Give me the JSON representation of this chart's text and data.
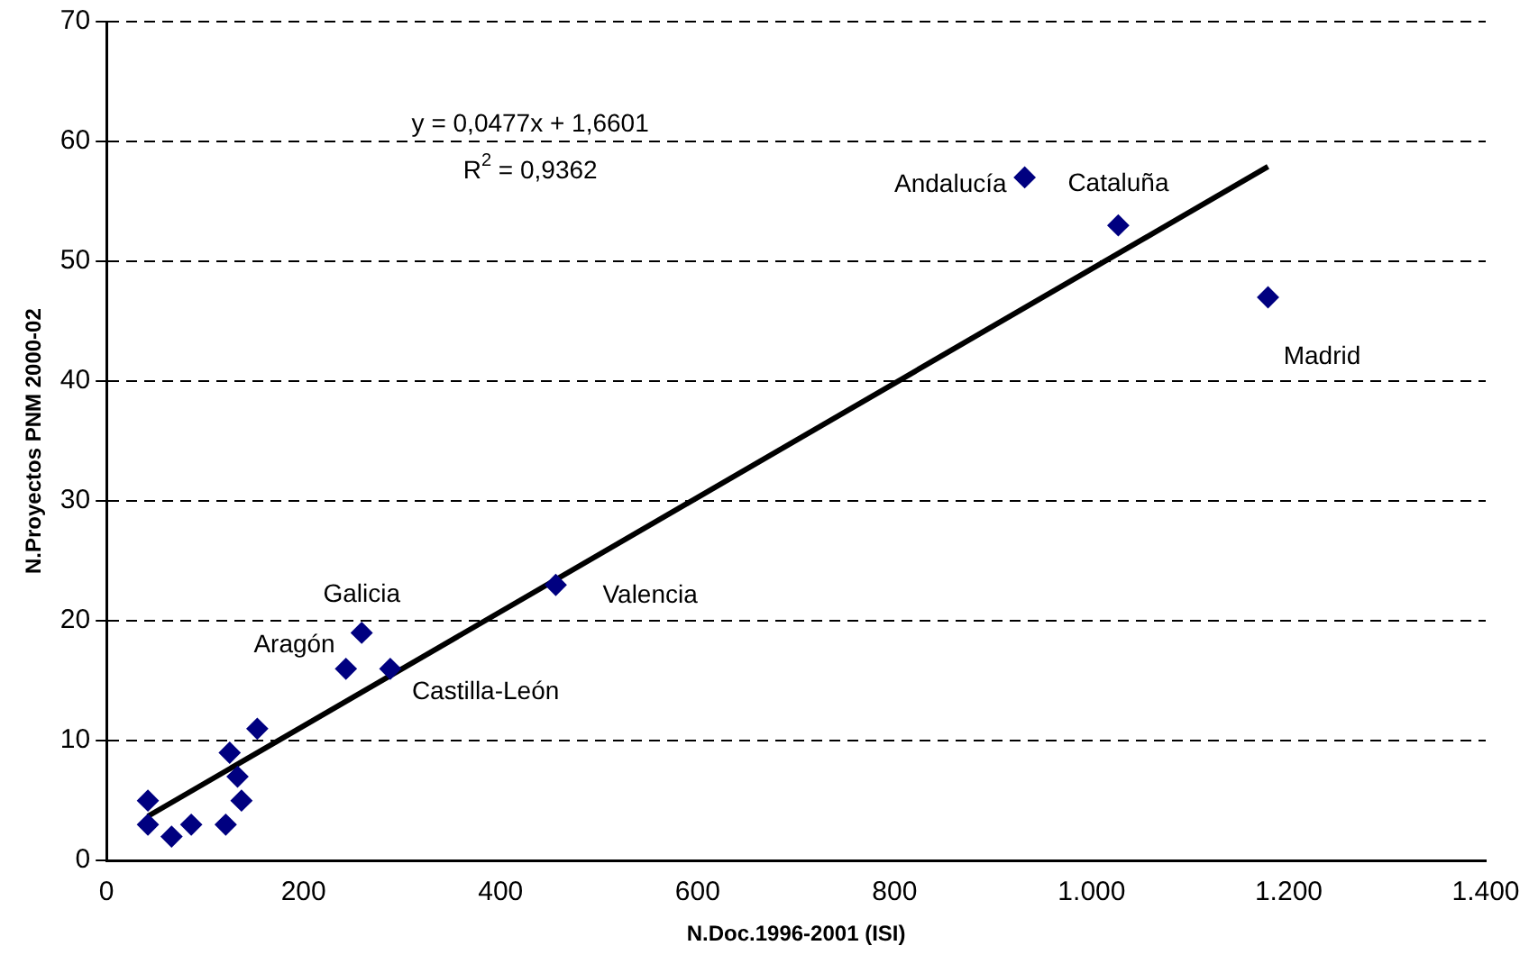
{
  "chart_data": {
    "type": "scatter",
    "xlabel": "N.Doc.1996-2001 (ISI)",
    "ylabel": "N.Proyectos PNM 2000-02",
    "xlim": [
      0,
      1400
    ],
    "xticks": [
      0,
      200,
      400,
      600,
      800,
      {
        "value": 1000,
        "label": "1.000"
      },
      {
        "value": 1200,
        "label": "1.200"
      },
      {
        "value": 1400,
        "label": "1.400"
      }
    ],
    "ylim": [
      0,
      70
    ],
    "yticks": [
      0,
      10,
      20,
      30,
      40,
      50,
      60,
      70
    ],
    "grid": "y",
    "legend": false,
    "series": [
      {
        "marker": "diamond",
        "color": "#000080",
        "x": [
          42,
          42,
          66,
          86,
          121,
          125,
          133,
          137,
          153,
          243,
          259,
          288,
          456,
          932,
          1027,
          1179
        ],
        "values": [
          5,
          3,
          2,
          3,
          3,
          9,
          7,
          5,
          11,
          16,
          19,
          16,
          23,
          57,
          53,
          47
        ]
      },
      {
        "type": "line",
        "marker": "none",
        "color": "#000000",
        "x": [
          42,
          1179
        ],
        "values": [
          3.7,
          57.9
        ]
      }
    ],
    "annotations": [
      "y = 0,0477x + 1,6601",
      "R$^{2}$ = 0,9362",
      {
        "text": "Aragón",
        "x": 243,
        "y": 16
      },
      {
        "text": "Galicia",
        "x": 259,
        "y": 19
      },
      {
        "text": "Castilla-León",
        "x": 288,
        "y": 16
      },
      {
        "text": "Valencia",
        "x": 456,
        "y": 23
      },
      {
        "text": "Andalucía",
        "x": 932,
        "y": 57
      },
      {
        "text": "Cataluña",
        "x": 1027,
        "y": 53
      },
      {
        "text": "Madrid",
        "x": 1179,
        "y": 47
      }
    ]
  }
}
